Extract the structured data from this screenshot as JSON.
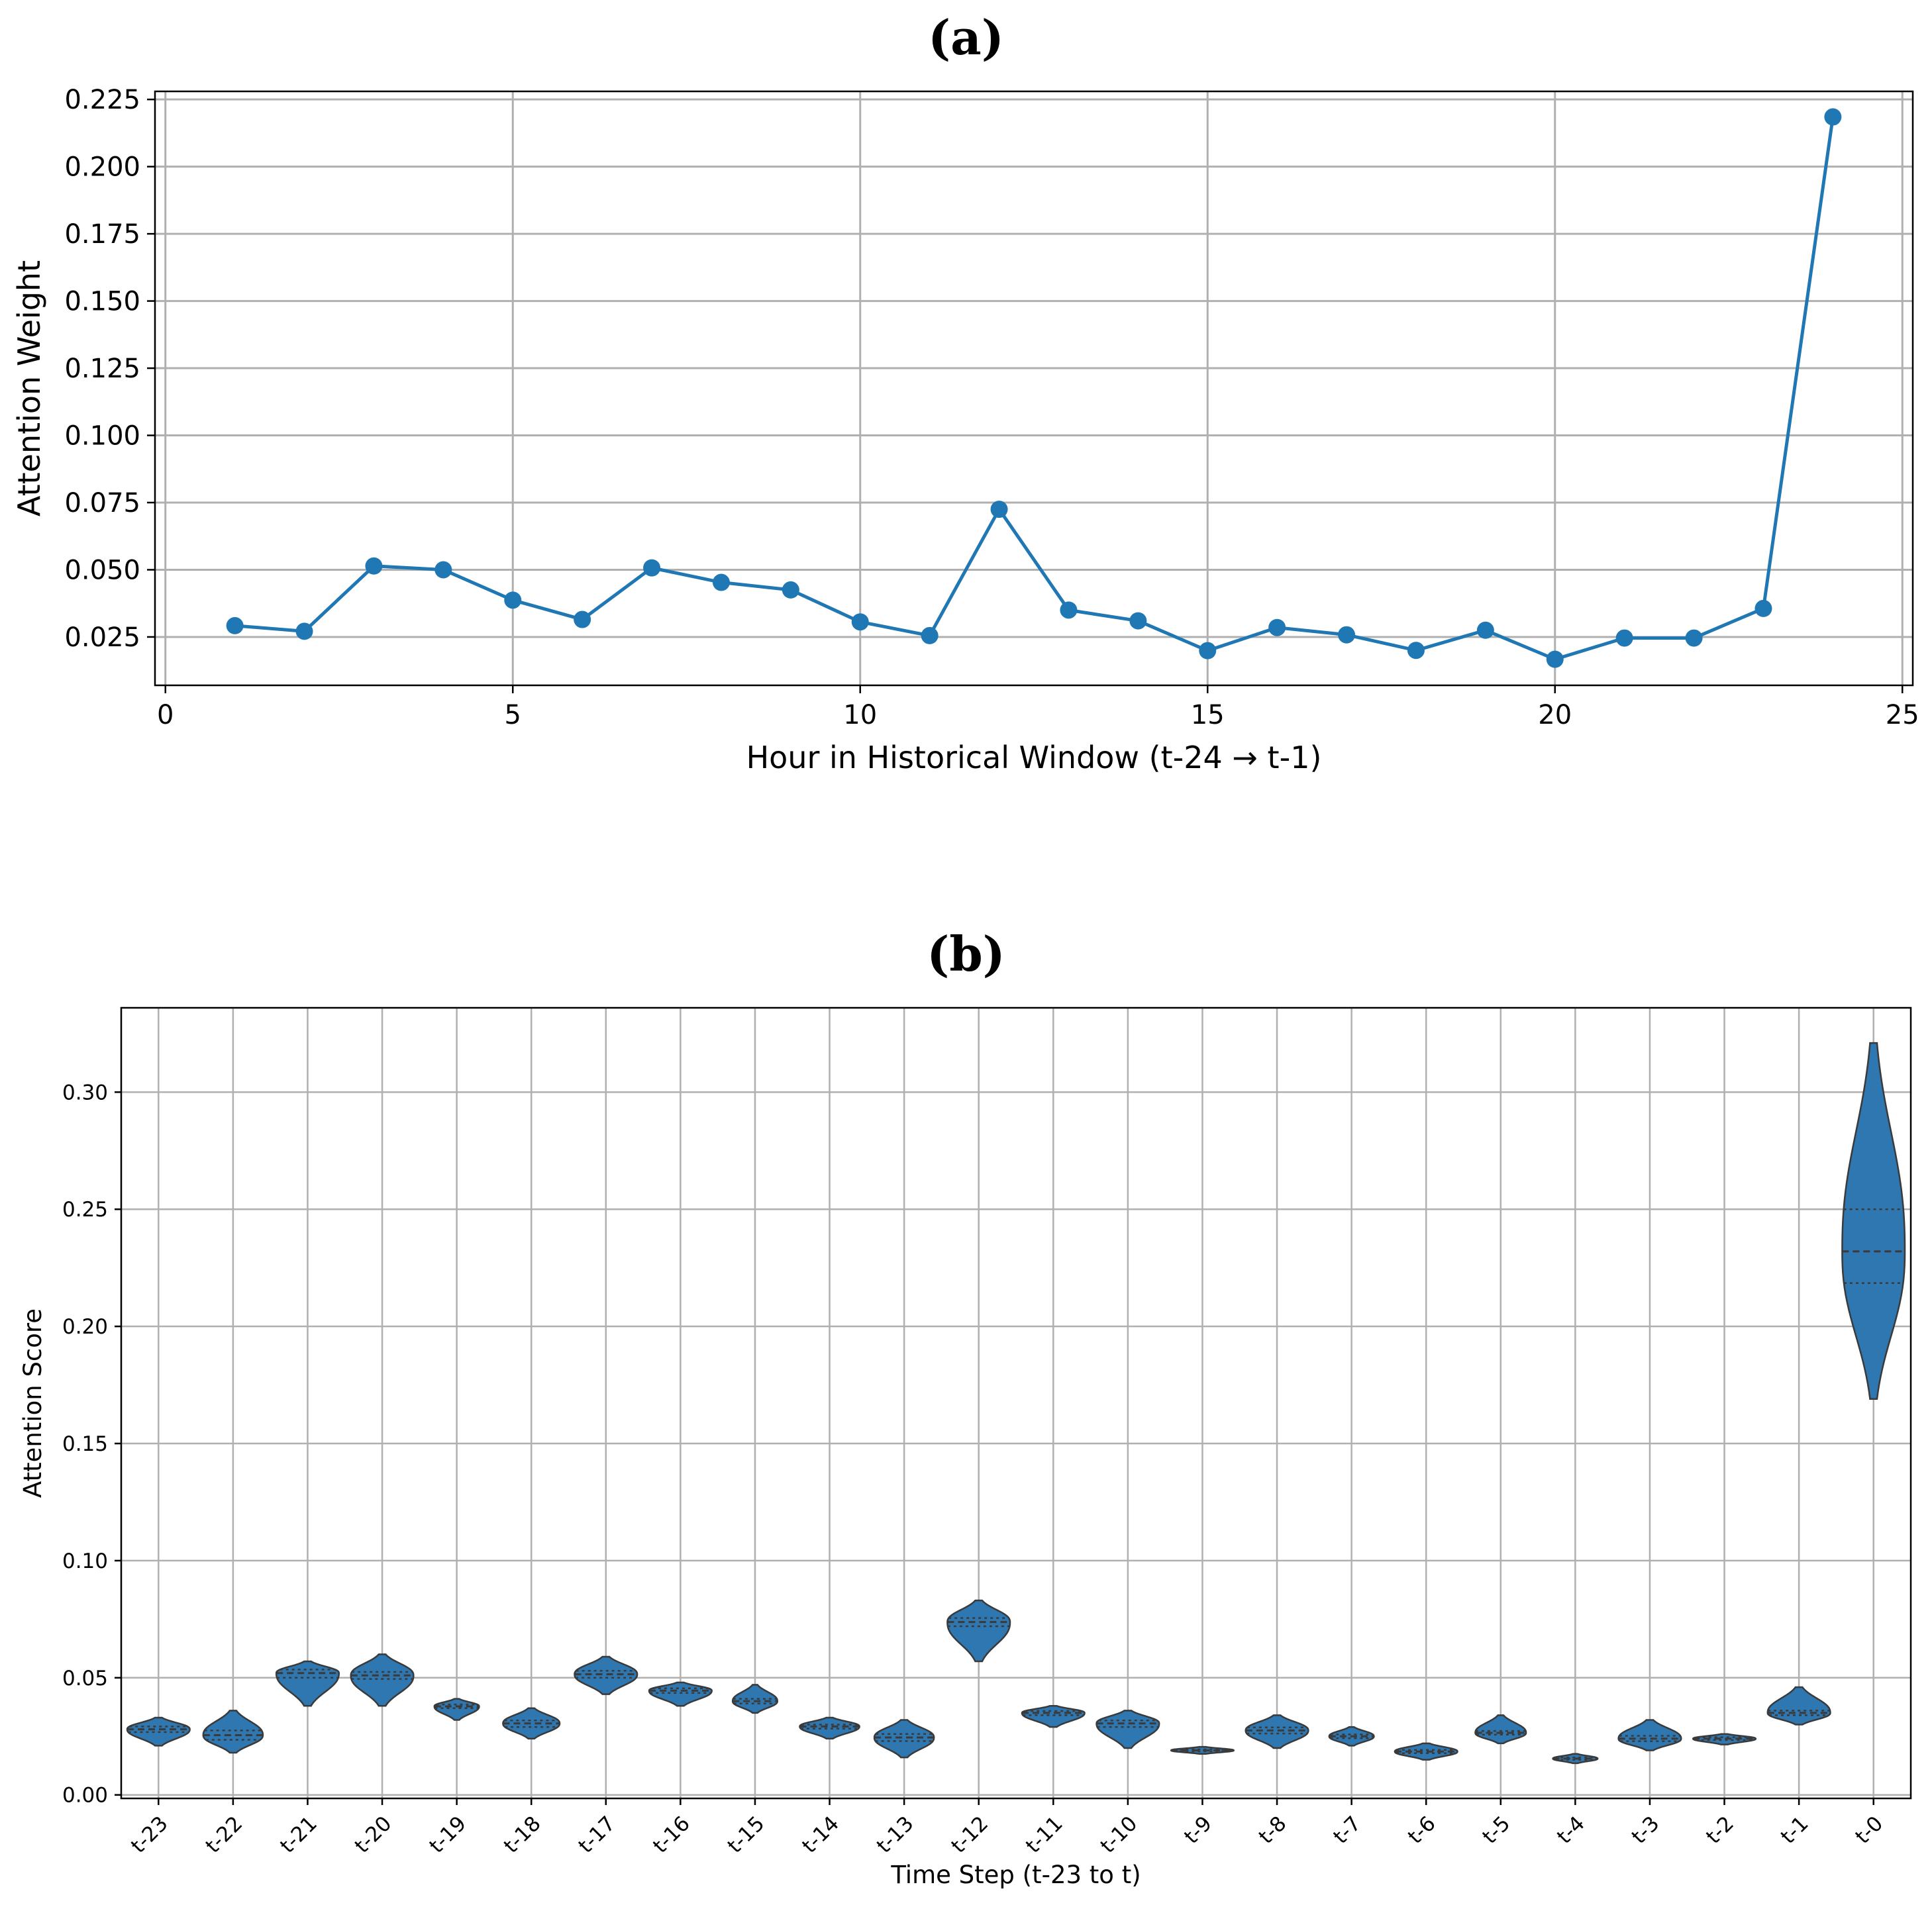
{
  "chart_data": [
    {
      "panel_label": "(a)",
      "type": "line",
      "xlabel": "Hour in Historical Window (t-24 → t-1)",
      "ylabel": "Attention Weight",
      "xlim": [
        -0.15,
        25.15
      ],
      "ylim": [
        0.007,
        0.228
      ],
      "xticks": [
        0,
        5,
        10,
        15,
        20,
        25
      ],
      "yticks": [
        0.025,
        0.05,
        0.075,
        0.1,
        0.125,
        0.15,
        0.175,
        0.2,
        0.225
      ],
      "ytick_labels": [
        "0.025",
        "0.050",
        "0.075",
        "0.100",
        "0.125",
        "0.150",
        "0.175",
        "0.200",
        "0.225"
      ],
      "grid": true,
      "color": "#1f77b4",
      "x": [
        1,
        2,
        3,
        4,
        5,
        6,
        7,
        8,
        9,
        10,
        11,
        12,
        13,
        14,
        15,
        16,
        17,
        18,
        19,
        20,
        21,
        22,
        23,
        24
      ],
      "y": [
        0.0292,
        0.0271,
        0.0514,
        0.05,
        0.0387,
        0.0315,
        0.0507,
        0.0453,
        0.0425,
        0.0306,
        0.0255,
        0.0725,
        0.035,
        0.031,
        0.0199,
        0.0285,
        0.0258,
        0.02,
        0.0275,
        0.0167,
        0.0246,
        0.0246,
        0.0356,
        0.2185
      ]
    },
    {
      "panel_label": "(b)",
      "type": "violin",
      "xlabel": "Time Step (t-23 to t)",
      "ylabel": "Attention Score",
      "ylim": [
        -0.0015,
        0.336
      ],
      "yticks": [
        0.0,
        0.05,
        0.1,
        0.15,
        0.2,
        0.25,
        0.3
      ],
      "ytick_labels": [
        "0.00",
        "0.05",
        "0.10",
        "0.15",
        "0.20",
        "0.25",
        "0.30"
      ],
      "grid": true,
      "color": "#2e77b1",
      "categories": [
        "t-23",
        "t-22",
        "t-21",
        "t-20",
        "t-19",
        "t-18",
        "t-17",
        "t-16",
        "t-15",
        "t-14",
        "t-13",
        "t-12",
        "t-11",
        "t-10",
        "t-9",
        "t-8",
        "t-7",
        "t-6",
        "t-5",
        "t-4",
        "t-3",
        "t-2",
        "t-1",
        "t-0"
      ],
      "medians": [
        0.028,
        0.0255,
        0.052,
        0.051,
        0.0378,
        0.0305,
        0.0515,
        0.0445,
        0.04,
        0.0292,
        0.0245,
        0.0738,
        0.035,
        0.0305,
        0.019,
        0.0275,
        0.025,
        0.0185,
        0.0265,
        0.0155,
        0.024,
        0.024,
        0.035,
        0.232
      ],
      "q1": [
        0.0268,
        0.0235,
        0.05,
        0.0495,
        0.037,
        0.029,
        0.05,
        0.0435,
        0.039,
        0.0283,
        0.023,
        0.072,
        0.034,
        0.029,
        0.0186,
        0.0262,
        0.0242,
        0.0178,
        0.0257,
        0.015,
        0.0229,
        0.0234,
        0.034,
        0.2185
      ],
      "q3": [
        0.0292,
        0.0275,
        0.0535,
        0.0525,
        0.0386,
        0.0318,
        0.053,
        0.0455,
        0.041,
        0.03,
        0.026,
        0.0755,
        0.0358,
        0.0318,
        0.0194,
        0.0288,
        0.0258,
        0.0192,
        0.0273,
        0.016,
        0.0252,
        0.0246,
        0.036,
        0.25
      ],
      "mins": [
        0.021,
        0.018,
        0.038,
        0.038,
        0.032,
        0.024,
        0.043,
        0.038,
        0.035,
        0.024,
        0.016,
        0.057,
        0.029,
        0.02,
        0.0175,
        0.02,
        0.021,
        0.015,
        0.022,
        0.0135,
        0.019,
        0.0215,
        0.03,
        0.169
      ],
      "maxs": [
        0.033,
        0.036,
        0.057,
        0.06,
        0.041,
        0.037,
        0.059,
        0.048,
        0.047,
        0.033,
        0.032,
        0.083,
        0.038,
        0.036,
        0.0205,
        0.034,
        0.029,
        0.022,
        0.034,
        0.0175,
        0.032,
        0.026,
        0.046,
        0.321
      ],
      "widths": [
        0.42,
        0.4,
        0.42,
        0.42,
        0.3,
        0.38,
        0.42,
        0.42,
        0.3,
        0.4,
        0.4,
        0.42,
        0.42,
        0.42,
        0.42,
        0.42,
        0.3,
        0.42,
        0.34,
        0.3,
        0.42,
        0.42,
        0.42,
        0.42
      ]
    }
  ]
}
